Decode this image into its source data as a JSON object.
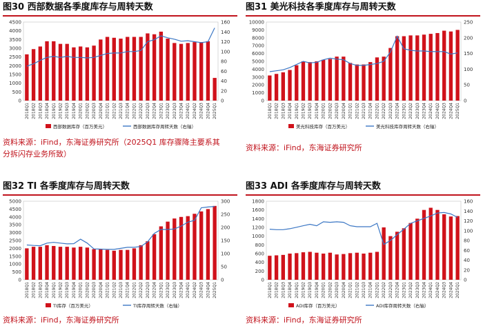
{
  "categories": [
    "2018Q1",
    "2018Q2",
    "2018Q3",
    "2018Q4",
    "2019Q1",
    "2019Q2",
    "2019Q3",
    "2019Q4",
    "2020Q1",
    "2020Q2",
    "2020Q3",
    "2020Q4",
    "2021Q1",
    "2021Q2",
    "2021Q3",
    "2021Q4",
    "2022Q1",
    "2022Q2",
    "2022Q3",
    "2022Q4",
    "2023Q1",
    "2023Q2",
    "2023Q3",
    "2023Q4",
    "2024Q1",
    "2024Q2",
    "2024Q3",
    "2024Q4",
    "2025Q1"
  ],
  "colors": {
    "bar": "#d0121b",
    "line": "#3a76c4",
    "accent": "#c0121b"
  },
  "panels": [
    {
      "id": "p30",
      "title": "图30  西部数据各季度库存与周转天数",
      "source": [
        "资料来源：iFind，东海证券研究所（2025Q1 库存骤降主要系其",
        "分拆闪存业务所致）"
      ],
      "legend_bar": "西部数据库存（百万美元）",
      "legend_line": "西部数据库存周转天数（右轴）",
      "chart_data": {
        "type": "bar+line",
        "ylim_left": [
          0,
          4500
        ],
        "yticks_left": [
          0,
          500,
          1000,
          1500,
          2000,
          2500,
          3000,
          3500,
          4000,
          4500
        ],
        "ylim_right": [
          0,
          160
        ],
        "yticks_right": [
          0,
          20,
          40,
          60,
          80,
          100,
          120,
          140,
          160
        ],
        "bars": [
          2650,
          2950,
          3100,
          3400,
          3400,
          3250,
          3250,
          3050,
          3100,
          3050,
          3150,
          3500,
          3650,
          3600,
          3550,
          3650,
          3650,
          3650,
          3850,
          3800,
          3950,
          3550,
          3300,
          3250,
          3300,
          3350,
          3350,
          3400,
          1300
        ],
        "line": [
          70,
          75,
          82,
          88,
          90,
          88,
          90,
          88,
          88,
          87,
          88,
          92,
          96,
          97,
          97,
          100,
          100,
          102,
          120,
          124,
          132,
          128,
          125,
          121,
          122,
          120,
          118,
          120,
          148
        ]
      }
    },
    {
      "id": "p31",
      "title": "图31  美光科技各季度库存与周转天数",
      "source": [
        "资料来源：iFind，东海证券研究所"
      ],
      "legend_bar": "美光科技库存（百万美元）",
      "legend_line": "美光科技库存周转天数（右轴）",
      "chart_data": {
        "type": "bar+line",
        "ylim_left": [
          0,
          10000
        ],
        "yticks_left": [
          0,
          1000,
          2000,
          3000,
          4000,
          5000,
          6000,
          7000,
          8000,
          9000,
          10000
        ],
        "ylim_right": [
          0,
          250
        ],
        "yticks_right": [
          0,
          50,
          100,
          150,
          200,
          250
        ],
        "bars": [
          3200,
          3400,
          3600,
          3900,
          4500,
          5000,
          4900,
          5000,
          5200,
          5300,
          5600,
          5600,
          4800,
          4600,
          4600,
          4900,
          5500,
          5600,
          6700,
          8200,
          8200,
          8300,
          8300,
          8400,
          8500,
          8600,
          8900,
          8800,
          9000
        ],
        "line": [
          92,
          95,
          98,
          105,
          115,
          125,
          120,
          122,
          130,
          135,
          132,
          130,
          118,
          112,
          112,
          115,
          118,
          125,
          155,
          205,
          165,
          160,
          158,
          158,
          156,
          156,
          156,
          148,
          152
        ]
      }
    },
    {
      "id": "p32",
      "title": "图32  TI 各季度库存与周转天数",
      "source": [
        "资料来源：iFind，东海证券研究所"
      ],
      "legend_bar": "TI库存（百万美元）",
      "legend_line": "TI库存周转天数（右轴）",
      "chart_data": {
        "type": "bar+line",
        "ylim_left": [
          0,
          5000
        ],
        "yticks_left": [
          0,
          500,
          1000,
          1500,
          2000,
          2500,
          3000,
          3500,
          4000,
          4500,
          5000
        ],
        "ylim_right": [
          0,
          300
        ],
        "yticks_right": [
          0,
          50,
          100,
          150,
          200,
          250,
          300
        ],
        "bars": [
          2000,
          2100,
          2100,
          2200,
          2150,
          2100,
          2100,
          2050,
          2100,
          2050,
          1950,
          1950,
          1900,
          1850,
          1900,
          1900,
          2000,
          2200,
          2450,
          2900,
          3400,
          3700,
          3900,
          4000,
          4050,
          4200,
          4350,
          4500,
          4700
        ],
        "line": [
          133,
          131,
          130,
          140,
          143,
          140,
          137,
          138,
          155,
          140,
          118,
          117,
          116,
          116,
          120,
          124,
          124,
          127,
          145,
          177,
          192,
          192,
          194,
          205,
          220,
          227,
          275,
          278,
          280
        ]
      }
    },
    {
      "id": "p33",
      "title": "图33  ADI 各季度库存与周转天数",
      "source": [
        "资料来源：iFind，东海证券研究所"
      ],
      "legend_bar": "ADI库存（百万美元）",
      "legend_line": "ADI库存周转天数（右轴）",
      "chart_data": {
        "type": "bar+line",
        "ylim_left": [
          0,
          1800
        ],
        "yticks_left": [
          0,
          200,
          400,
          600,
          800,
          1000,
          1200,
          1400,
          1600,
          1800
        ],
        "ylim_right": [
          0,
          160
        ],
        "yticks_right": [
          0,
          20,
          40,
          60,
          80,
          100,
          120,
          140,
          160
        ],
        "bars": [
          550,
          560,
          570,
          600,
          610,
          630,
          640,
          620,
          600,
          620,
          580,
          590,
          610,
          620,
          600,
          620,
          640,
          1200,
          1000,
          1100,
          1180,
          1300,
          1400,
          1600,
          1650,
          1600,
          1500,
          1450,
          1460
        ],
        "line": [
          103,
          102,
          102,
          104,
          107,
          110,
          113,
          110,
          118,
          117,
          118,
          117,
          110,
          108,
          108,
          108,
          115,
          72,
          80,
          92,
          103,
          115,
          120,
          125,
          130,
          136,
          137,
          134,
          127
        ]
      }
    }
  ]
}
